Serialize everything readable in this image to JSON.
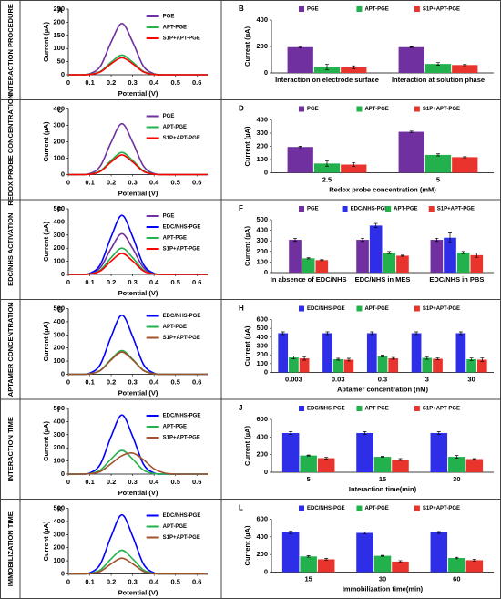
{
  "row_labels": [
    "INTERACTION PROCEDURE",
    "REDOX PROBE CONCENTRATION",
    "EDC/NHS ACTIVATION",
    "APTAMER CONCENTRATION",
    "INTERACTION TIME",
    "IMMOBILIZATION TIME"
  ],
  "chart_data": [
    {
      "type": "line",
      "panel": "A",
      "y_label": "Current (µA)",
      "x_label": "Potential (V)",
      "x": [
        0,
        0.05,
        0.1,
        0.15,
        0.2,
        0.25,
        0.3,
        0.35,
        0.4,
        0.45,
        0.5,
        0.55,
        0.6,
        0.65
      ],
      "xlim": [
        0,
        0.65
      ],
      "xticks": [
        0,
        0.1,
        0.2,
        0.3,
        0.4,
        0.5,
        0.6
      ],
      "ylim": [
        0,
        250
      ],
      "yticks": [
        0,
        50,
        100,
        150,
        200,
        250
      ],
      "series": [
        {
          "name": "PGE",
          "color": "#7030a0",
          "values": [
            0,
            0,
            4,
            33,
            125,
            195,
            125,
            33,
            4,
            0,
            0,
            0,
            0,
            0
          ]
        },
        {
          "name": "APT-PGE",
          "color": "#22b14c",
          "values": [
            0,
            0,
            2,
            13,
            48,
            75,
            48,
            13,
            2,
            0,
            0,
            0,
            0,
            0
          ]
        },
        {
          "name": "S1P+APT-PGE",
          "color": "#ff0000",
          "values": [
            0,
            0,
            1,
            11,
            42,
            65,
            42,
            11,
            1,
            0,
            0,
            0,
            0,
            0
          ]
        }
      ]
    },
    {
      "type": "bar",
      "panel": "B",
      "y_label": "Current (µA)",
      "categories": [
        "Interaction on electrode surface",
        "Interaction at solution phase"
      ],
      "ylim": [
        0,
        400
      ],
      "yticks": [
        0,
        200,
        400
      ],
      "series": [
        {
          "name": "PGE",
          "color": "#7030a0",
          "values": [
            195,
            195
          ],
          "errors": [
            5,
            3
          ]
        },
        {
          "name": "APT-PGE",
          "color": "#22b14c",
          "values": [
            45,
            68
          ],
          "errors": [
            20,
            10
          ]
        },
        {
          "name": "S1P+APT-PGE",
          "color": "#e8342c",
          "values": [
            42,
            60
          ],
          "errors": [
            12,
            5
          ]
        }
      ]
    },
    {
      "type": "line",
      "panel": "C",
      "y_label": "Current (µA)",
      "x_label": "Potential (V)",
      "x": [
        0,
        0.05,
        0.1,
        0.15,
        0.2,
        0.25,
        0.3,
        0.35,
        0.4,
        0.45,
        0.5,
        0.55,
        0.6,
        0.65
      ],
      "xlim": [
        0,
        0.65
      ],
      "xticks": [
        0,
        0.1,
        0.2,
        0.3,
        0.4,
        0.5,
        0.6
      ],
      "ylim": [
        0,
        400
      ],
      "yticks": [
        0,
        100,
        200,
        300,
        400
      ],
      "series": [
        {
          "name": "PGE",
          "color": "#7030a0",
          "values": [
            0,
            0,
            6,
            53,
            198,
            310,
            198,
            53,
            6,
            0,
            0,
            0,
            0,
            0
          ]
        },
        {
          "name": "APT-PGE",
          "color": "#22b14c",
          "values": [
            0,
            0,
            3,
            23,
            86,
            135,
            86,
            23,
            3,
            0,
            0,
            0,
            0,
            0
          ]
        },
        {
          "name": "S1P+APT-PGE",
          "color": "#ff0000",
          "values": [
            0,
            0,
            2,
            20,
            77,
            120,
            77,
            20,
            2,
            0,
            0,
            0,
            0,
            0
          ]
        }
      ]
    },
    {
      "type": "bar",
      "panel": "D",
      "y_label": "Current (µA)",
      "x_label": "Redox probe concentration (mM)",
      "categories": [
        "2.5",
        "5"
      ],
      "ylim": [
        0,
        400
      ],
      "yticks": [
        0,
        100,
        200,
        300,
        400
      ],
      "series": [
        {
          "name": "PGE",
          "color": "#7030a0",
          "values": [
            195,
            310
          ],
          "errors": [
            5,
            5
          ]
        },
        {
          "name": "APT-PGE",
          "color": "#22b14c",
          "values": [
            70,
            135
          ],
          "errors": [
            20,
            8
          ]
        },
        {
          "name": "S1P+APT-PGE",
          "color": "#e8342c",
          "values": [
            62,
            118
          ],
          "errors": [
            15,
            4
          ]
        }
      ]
    },
    {
      "type": "line",
      "panel": "E",
      "y_label": "Current (µA)",
      "x_label": "Potential (V)",
      "x": [
        0,
        0.05,
        0.1,
        0.15,
        0.2,
        0.25,
        0.3,
        0.35,
        0.4,
        0.45,
        0.5,
        0.55,
        0.6,
        0.65
      ],
      "xlim": [
        0,
        0.65
      ],
      "xticks": [
        0,
        0.1,
        0.2,
        0.3,
        0.4,
        0.5,
        0.6
      ],
      "ylim": [
        0,
        500
      ],
      "yticks": [
        0,
        100,
        200,
        300,
        400,
        500
      ],
      "series": [
        {
          "name": "PGE",
          "color": "#7030a0",
          "values": [
            0,
            0,
            6,
            53,
            198,
            310,
            198,
            53,
            6,
            0,
            0,
            0,
            0,
            0
          ]
        },
        {
          "name": "EDC/NHS-PGE",
          "color": "#0000ff",
          "values": [
            0,
            0,
            8,
            77,
            288,
            450,
            288,
            77,
            8,
            0,
            0,
            0,
            0,
            0
          ]
        },
        {
          "name": "APT-PGE",
          "color": "#22b14c",
          "values": [
            0,
            0,
            4,
            34,
            128,
            200,
            128,
            34,
            4,
            0,
            0,
            0,
            0,
            0
          ]
        },
        {
          "name": "S1P+APT-PGE",
          "color": "#ff0000",
          "values": [
            0,
            0,
            3,
            27,
            102,
            160,
            102,
            27,
            3,
            0,
            0,
            0,
            0,
            0
          ]
        }
      ]
    },
    {
      "type": "bar",
      "panel": "F",
      "y_label": "Current (µA)",
      "categories": [
        "In absence of EDC/NHS",
        "EDC/NHS in MES",
        "EDC/NHS in PBS"
      ],
      "ylim": [
        0,
        500
      ],
      "yticks": [
        0,
        100,
        200,
        300,
        400,
        500
      ],
      "series": [
        {
          "name": "PGE",
          "color": "#7030a0",
          "values": [
            310,
            310,
            310
          ],
          "errors": [
            15,
            15,
            15
          ]
        },
        {
          "name": "EDC/NHS-PGE",
          "color": "#2e2ee8",
          "values": [
            null,
            445,
            330
          ],
          "errors": [
            null,
            20,
            45
          ]
        },
        {
          "name": "APT-PGE",
          "color": "#22b14c",
          "values": [
            135,
            190,
            190
          ],
          "errors": [
            5,
            10,
            10
          ]
        },
        {
          "name": "S1P+APT-PGE",
          "color": "#e8342c",
          "values": [
            118,
            160,
            165
          ],
          "errors": [
            5,
            5,
            20
          ]
        }
      ]
    },
    {
      "type": "line",
      "panel": "G",
      "y_label": "Current (µA)",
      "x_label": "Potential (V)",
      "x": [
        0,
        0.05,
        0.1,
        0.15,
        0.2,
        0.25,
        0.3,
        0.35,
        0.4,
        0.45,
        0.5,
        0.55,
        0.6,
        0.65
      ],
      "xlim": [
        0,
        0.65
      ],
      "xticks": [
        0,
        0.1,
        0.2,
        0.3,
        0.4,
        0.5,
        0.6
      ],
      "ylim": [
        0,
        500
      ],
      "yticks": [
        0,
        100,
        200,
        300,
        400,
        500
      ],
      "series": [
        {
          "name": "EDC/NHS-PGE",
          "color": "#0000ff",
          "values": [
            0,
            0,
            8,
            77,
            288,
            450,
            288,
            77,
            8,
            0,
            0,
            0,
            0,
            0
          ]
        },
        {
          "name": "APT-PGE",
          "color": "#22b14c",
          "values": [
            0,
            0,
            4,
            31,
            115,
            180,
            115,
            31,
            4,
            0,
            0,
            0,
            0,
            0
          ]
        },
        {
          "name": "S1P+APT-PGE",
          "color": "#a0522d",
          "values": [
            0,
            0,
            3,
            29,
            109,
            170,
            109,
            29,
            3,
            0,
            0,
            0,
            0,
            0
          ]
        }
      ]
    },
    {
      "type": "bar",
      "panel": "H",
      "y_label": "Current (µA)",
      "x_label": "Aptamer concentration (nM)",
      "categories": [
        "0.003",
        "0.03",
        "0.3",
        "3",
        "30"
      ],
      "ylim": [
        0,
        600
      ],
      "yticks": [
        0,
        100,
        200,
        300,
        400,
        500,
        600
      ],
      "series": [
        {
          "name": "EDC/NHS-PGE",
          "color": "#2e2ee8",
          "values": [
            445,
            445,
            445,
            445,
            445
          ],
          "errors": [
            15,
            15,
            15,
            15,
            15
          ]
        },
        {
          "name": "APT-PGE",
          "color": "#22b14c",
          "values": [
            170,
            150,
            185,
            165,
            150
          ],
          "errors": [
            15,
            10,
            10,
            15,
            15
          ]
        },
        {
          "name": "S1P+APT-PGE",
          "color": "#e8342c",
          "values": [
            160,
            145,
            160,
            155,
            145
          ],
          "errors": [
            20,
            15,
            10,
            10,
            20
          ]
        }
      ]
    },
    {
      "type": "line",
      "panel": "I",
      "y_label": "Current (µA)",
      "x_label": "Potential (V)",
      "x": [
        0,
        0.05,
        0.1,
        0.15,
        0.2,
        0.25,
        0.3,
        0.35,
        0.4,
        0.45,
        0.5,
        0.55,
        0.6,
        0.65
      ],
      "xlim": [
        0,
        0.65
      ],
      "xticks": [
        0,
        0.1,
        0.2,
        0.3,
        0.4,
        0.5,
        0.6
      ],
      "ylim": [
        0,
        500
      ],
      "yticks": [
        0,
        100,
        200,
        300,
        400,
        500
      ],
      "series": [
        {
          "name": "EDC/NHS-PGE",
          "color": "#0000ff",
          "values": [
            0,
            0,
            8,
            77,
            288,
            450,
            288,
            77,
            8,
            0,
            0,
            0,
            0,
            0
          ]
        },
        {
          "name": "APT-PGE",
          "color": "#22b14c",
          "values": [
            0,
            0,
            4,
            31,
            115,
            180,
            115,
            31,
            4,
            0,
            0,
            0,
            0,
            0
          ]
        },
        {
          "name": "S1P+APT-PGE",
          "color": "#a0522d",
          "values": [
            0,
            0,
            3,
            20,
            80,
            140,
            160,
            110,
            40,
            8,
            0,
            0,
            0,
            0
          ]
        }
      ]
    },
    {
      "type": "bar",
      "panel": "J",
      "y_label": "Current (µA)",
      "x_label": "Interaction time(min)",
      "categories": [
        "5",
        "15",
        "30"
      ],
      "ylim": [
        0,
        600
      ],
      "yticks": [
        0,
        200,
        400,
        600
      ],
      "series": [
        {
          "name": "EDC/NHS-PGE",
          "color": "#2e2ee8",
          "values": [
            445,
            445,
            445
          ],
          "errors": [
            15,
            15,
            15
          ]
        },
        {
          "name": "APT-PGE",
          "color": "#22b14c",
          "values": [
            190,
            175,
            175
          ],
          "errors": [
            5,
            5,
            15
          ]
        },
        {
          "name": "S1P+APT-PGE",
          "color": "#e8342c",
          "values": [
            160,
            145,
            150
          ],
          "errors": [
            10,
            10,
            5
          ]
        }
      ]
    },
    {
      "type": "line",
      "panel": "K",
      "y_label": "Current (µA)",
      "x_label": "Potential (V)",
      "x": [
        0,
        0.05,
        0.1,
        0.15,
        0.2,
        0.25,
        0.3,
        0.35,
        0.4,
        0.45,
        0.5,
        0.55,
        0.6,
        0.65
      ],
      "xlim": [
        0,
        0.65
      ],
      "xticks": [
        0,
        0.1,
        0.2,
        0.3,
        0.4,
        0.5,
        0.6
      ],
      "ylim": [
        0,
        500
      ],
      "yticks": [
        0,
        100,
        200,
        300,
        400,
        500
      ],
      "series": [
        {
          "name": "EDC/NHS-PGE",
          "color": "#0000ff",
          "values": [
            0,
            0,
            8,
            77,
            288,
            450,
            288,
            77,
            8,
            0,
            0,
            0,
            0,
            0
          ]
        },
        {
          "name": "APT-PGE",
          "color": "#22b14c",
          "values": [
            0,
            0,
            4,
            31,
            115,
            180,
            115,
            31,
            4,
            0,
            0,
            0,
            0,
            0
          ]
        },
        {
          "name": "S1P+APT-PGE",
          "color": "#a0522d",
          "values": [
            0,
            0,
            2,
            20,
            77,
            120,
            77,
            20,
            2,
            0,
            0,
            0,
            0,
            0
          ]
        }
      ]
    },
    {
      "type": "bar",
      "panel": "L",
      "y_label": "Current (µA)",
      "x_label": "Immobilization time(min)",
      "categories": [
        "15",
        "30",
        "60"
      ],
      "ylim": [
        0,
        600
      ],
      "yticks": [
        0,
        200,
        400,
        600
      ],
      "series": [
        {
          "name": "EDC/NHS-PGE",
          "color": "#2e2ee8",
          "values": [
            450,
            445,
            450
          ],
          "errors": [
            15,
            10,
            10
          ]
        },
        {
          "name": "APT-PGE",
          "color": "#22b14c",
          "values": [
            178,
            185,
            160
          ],
          "errors": [
            8,
            5,
            8
          ]
        },
        {
          "name": "S1P+APT-PGE",
          "color": "#e8342c",
          "values": [
            145,
            120,
            135
          ],
          "errors": [
            10,
            10,
            10
          ]
        }
      ]
    }
  ]
}
